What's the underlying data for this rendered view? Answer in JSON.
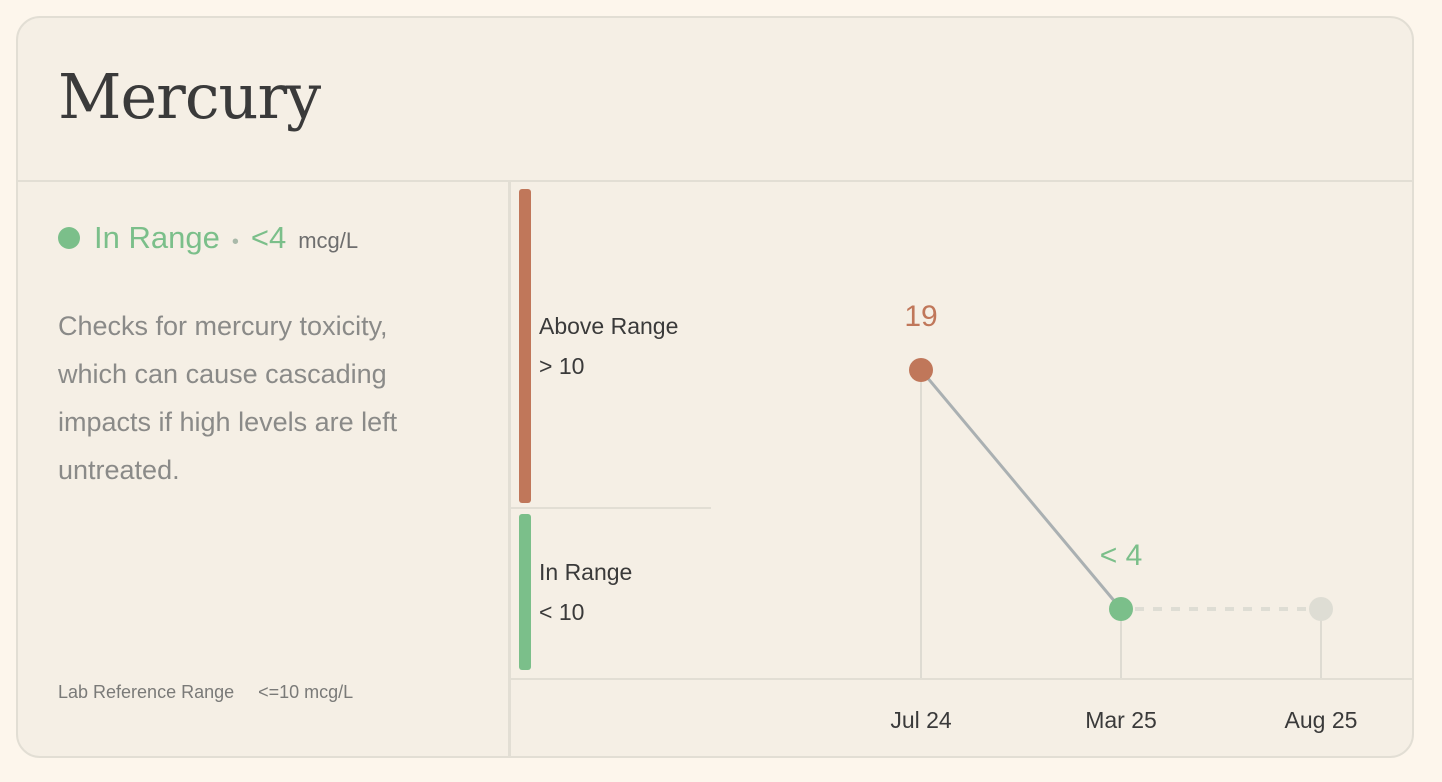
{
  "card": {
    "title": "Mercury"
  },
  "status": {
    "label": "In Range",
    "separator": "•",
    "value": "<4",
    "unit": "mcg/L",
    "color": "#7bbf8a"
  },
  "description": "Checks for mercury toxicity, which can cause cascading impacts if high levels are left untreated.",
  "reference": {
    "label": "Lab Reference Range",
    "value": "<=10 mcg/L"
  },
  "bands": [
    {
      "name": "Above Range",
      "threshold": "> 10",
      "color": "#c0775a"
    },
    {
      "name": "In Range",
      "threshold": "< 10",
      "color": "#7bbf8a"
    }
  ],
  "chart_data": {
    "type": "line",
    "categories": [
      "Jul 24",
      "Mar 25",
      "Aug 25"
    ],
    "points": [
      {
        "x": "Jul 24",
        "y": 19,
        "label": "19",
        "status": "above",
        "color": "#c0775a"
      },
      {
        "x": "Mar 25",
        "y": 4,
        "label": "< 4",
        "status": "in",
        "color": "#7bbf8a"
      },
      {
        "x": "Aug 25",
        "y": null,
        "label": "",
        "status": "future",
        "color": "#deddd4"
      }
    ],
    "line_color": "#aab0b2",
    "future_line_color": "#deddd4"
  }
}
